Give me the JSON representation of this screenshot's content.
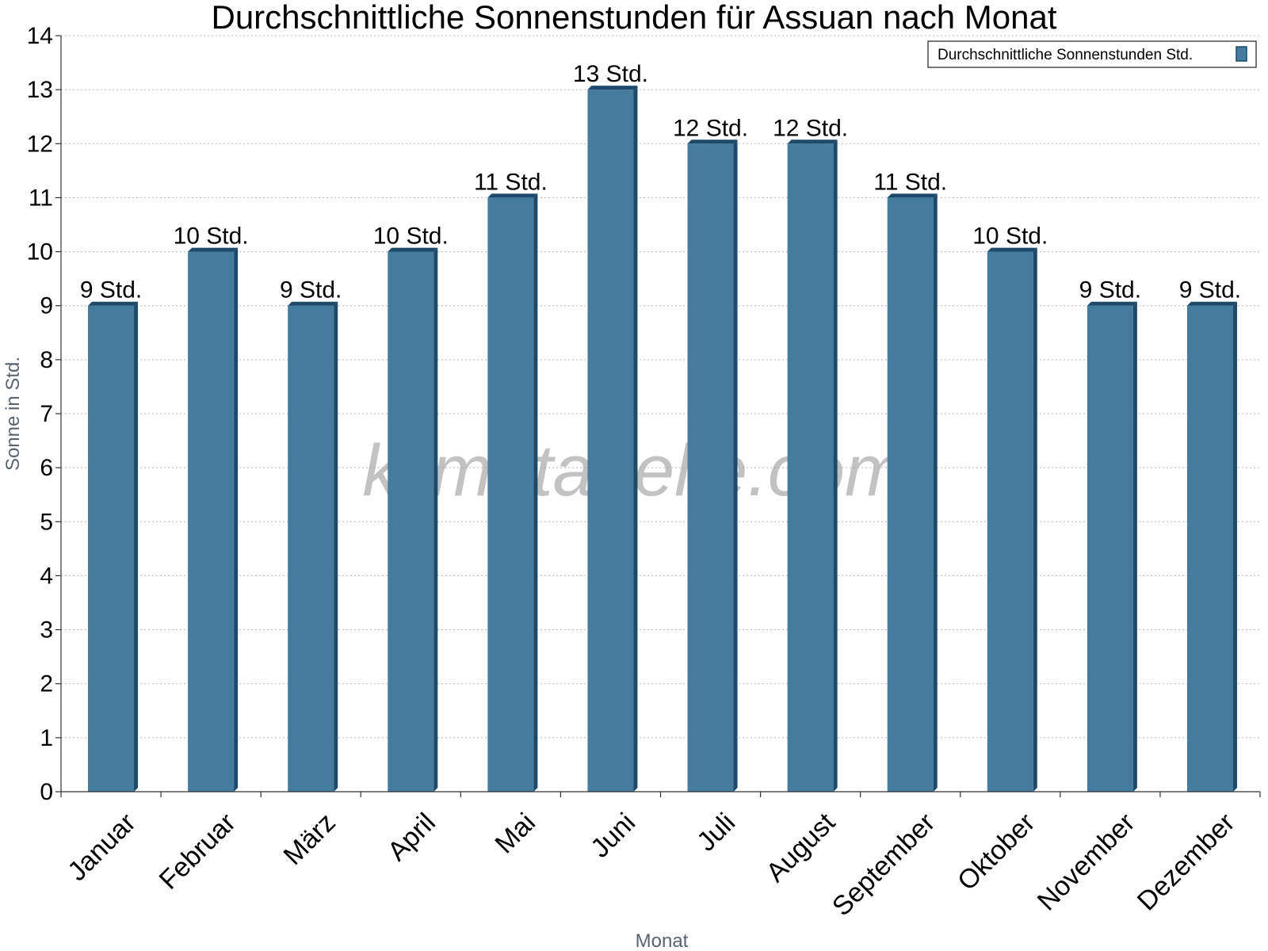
{
  "chart_data": {
    "type": "bar",
    "title": "Durchschnittliche Sonnenstunden für Assuan nach Monat",
    "xlabel": "Monat",
    "ylabel": "Sonne in Std.",
    "ylim": [
      0,
      14
    ],
    "yticks": [
      0,
      1,
      2,
      3,
      4,
      5,
      6,
      7,
      8,
      9,
      10,
      11,
      12,
      13,
      14
    ],
    "grid": true,
    "legend_position": "top-right",
    "categories": [
      "Januar",
      "Februar",
      "März",
      "April",
      "Mai",
      "Juni",
      "Juli",
      "August",
      "September",
      "Oktober",
      "November",
      "Dezember"
    ],
    "series": [
      {
        "name": "Durchschnittliche Sonnenstunden Std.",
        "values": [
          9,
          10,
          9,
          10,
          11,
          13,
          12,
          12,
          11,
          10,
          9,
          9
        ],
        "labels": [
          "9 Std.",
          "10 Std.",
          "9 Std.",
          "10 Std.",
          "11 Std.",
          "13 Std.",
          "12 Std.",
          "12 Std.",
          "11 Std.",
          "10 Std.",
          "9 Std.",
          "9 Std."
        ],
        "color": "#457b9d",
        "side_color": "#1d4a6b"
      }
    ],
    "watermark": "klimatabelle.com"
  }
}
